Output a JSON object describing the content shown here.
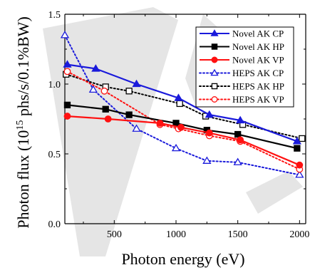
{
  "chart_data": {
    "type": "line",
    "xlabel": "Photon energy (eV)",
    "ylabel": "Photon flux (10",
    "ylabel_sup": "15",
    "ylabel_tail": " phs/s/0.1%BW)",
    "xlim": [
      100,
      2050
    ],
    "ylim": [
      0.0,
      1.5
    ],
    "xticks": [
      500,
      1000,
      1500,
      2000
    ],
    "yticks": [
      0.0,
      0.5,
      1.0,
      1.5
    ],
    "ytick_labels": [
      "0.0",
      "0.5",
      "1.0",
      "1.5"
    ],
    "legend_position": "top-right",
    "series": [
      {
        "name": "Novel AK CP",
        "color": "#1a1adb",
        "style": "solid",
        "marker": "triangle",
        "filled": true,
        "points": [
          [
            120,
            1.14
          ],
          [
            350,
            1.11
          ],
          [
            680,
            1.0
          ],
          [
            1020,
            0.9
          ],
          [
            1270,
            0.78
          ],
          [
            1520,
            0.74
          ],
          [
            1980,
            0.59
          ]
        ]
      },
      {
        "name": "Novel AK HP",
        "color": "#000000",
        "style": "solid",
        "marker": "square",
        "filled": true,
        "points": [
          [
            120,
            0.85
          ],
          [
            430,
            0.82
          ],
          [
            620,
            0.78
          ],
          [
            1000,
            0.72
          ],
          [
            1250,
            0.67
          ],
          [
            1500,
            0.64
          ],
          [
            1980,
            0.54
          ]
        ]
      },
      {
        "name": "Novel AK VP",
        "color": "#ff1111",
        "style": "solid",
        "marker": "circle",
        "filled": true,
        "points": [
          [
            120,
            0.77
          ],
          [
            450,
            0.75
          ],
          [
            870,
            0.72
          ],
          [
            1040,
            0.69
          ],
          [
            1270,
            0.65
          ],
          [
            1520,
            0.6
          ],
          [
            2000,
            0.42
          ]
        ]
      },
      {
        "name": "HEPS AK CP",
        "color": "#1a1adb",
        "style": "dotted",
        "marker": "triangle",
        "filled": false,
        "points": [
          [
            100,
            1.35
          ],
          [
            330,
            0.96
          ],
          [
            680,
            0.68
          ],
          [
            1000,
            0.54
          ],
          [
            1250,
            0.45
          ],
          [
            1500,
            0.44
          ],
          [
            2000,
            0.35
          ]
        ]
      },
      {
        "name": "HEPS AK HP",
        "color": "#000000",
        "style": "dotted",
        "marker": "square",
        "filled": false,
        "points": [
          [
            110,
            1.07
          ],
          [
            430,
            0.98
          ],
          [
            620,
            0.95
          ],
          [
            1030,
            0.86
          ],
          [
            1240,
            0.77
          ],
          [
            1540,
            0.71
          ],
          [
            2020,
            0.61
          ]
        ]
      },
      {
        "name": "HEPS AK VP",
        "color": "#ff1111",
        "style": "dotted",
        "marker": "circle",
        "filled": false,
        "points": [
          [
            120,
            1.09
          ],
          [
            420,
            0.95
          ],
          [
            870,
            0.71
          ],
          [
            1020,
            0.68
          ],
          [
            1270,
            0.63
          ],
          [
            1520,
            0.59
          ],
          [
            2000,
            0.39
          ]
        ]
      }
    ]
  }
}
